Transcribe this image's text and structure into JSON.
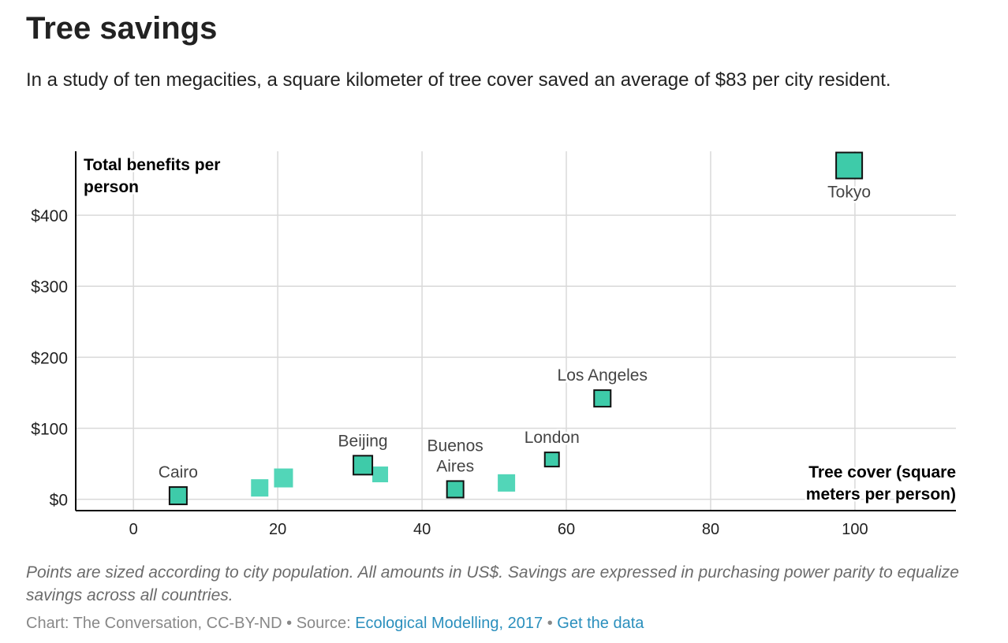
{
  "header": {
    "title": "Tree savings",
    "subtitle": "In a study of ten megacities, a square kilometer of tree cover saved an average of $83 per city resident."
  },
  "chart_data": {
    "type": "scatter",
    "ylabel_lines": [
      "Total benefits per",
      "person"
    ],
    "xlabel_lines": [
      "Tree cover (square",
      "meters per person)"
    ],
    "x_ticks": [
      0,
      20,
      40,
      60,
      80,
      100
    ],
    "y_ticks": [
      0,
      100,
      200,
      300,
      400
    ],
    "y_tick_labels": [
      "$0",
      "$100",
      "$200",
      "$300",
      "$400"
    ],
    "xlim": [
      -8,
      114
    ],
    "ylim": [
      -16,
      490
    ],
    "grid": true,
    "size_encoding": "city population",
    "point_color": "#3ecba9",
    "unlabeled_point_color": "#52d6b8",
    "points": [
      {
        "label_lines": [
          "Cairo"
        ],
        "x": 6.2,
        "y": 5,
        "size": 22,
        "label_pos": "above"
      },
      {
        "label_lines": [],
        "x": 17.5,
        "y": 16,
        "size": 22
      },
      {
        "label_lines": [],
        "x": 20.8,
        "y": 30,
        "size": 24
      },
      {
        "label_lines": [
          "Beijing"
        ],
        "x": 31.8,
        "y": 48,
        "size": 24,
        "label_pos": "above"
      },
      {
        "label_lines": [],
        "x": 34.2,
        "y": 35,
        "size": 20
      },
      {
        "label_lines": [
          "Buenos",
          "Aires"
        ],
        "x": 44.6,
        "y": 14,
        "size": 21,
        "label_pos": "above"
      },
      {
        "label_lines": [],
        "x": 51.7,
        "y": 23,
        "size": 22
      },
      {
        "label_lines": [
          "London"
        ],
        "x": 58.0,
        "y": 56,
        "size": 18,
        "label_pos": "above"
      },
      {
        "label_lines": [
          "Los Angeles"
        ],
        "x": 65.0,
        "y": 142,
        "size": 21,
        "label_pos": "above"
      },
      {
        "label_lines": [
          "Tokyo"
        ],
        "x": 99.2,
        "y": 470,
        "size": 33,
        "label_pos": "below"
      }
    ]
  },
  "footer": {
    "note": "Points are sized according to city population. All amounts in US$. Savings are expressed in purchasing power parity to equalize savings across all countries.",
    "credit_prefix": "Chart: The Conversation, CC-BY-ND",
    "separator": "•",
    "source_prefix": "Source:",
    "source_link": "Ecological Modelling, 2017",
    "data_link": "Get the data"
  }
}
